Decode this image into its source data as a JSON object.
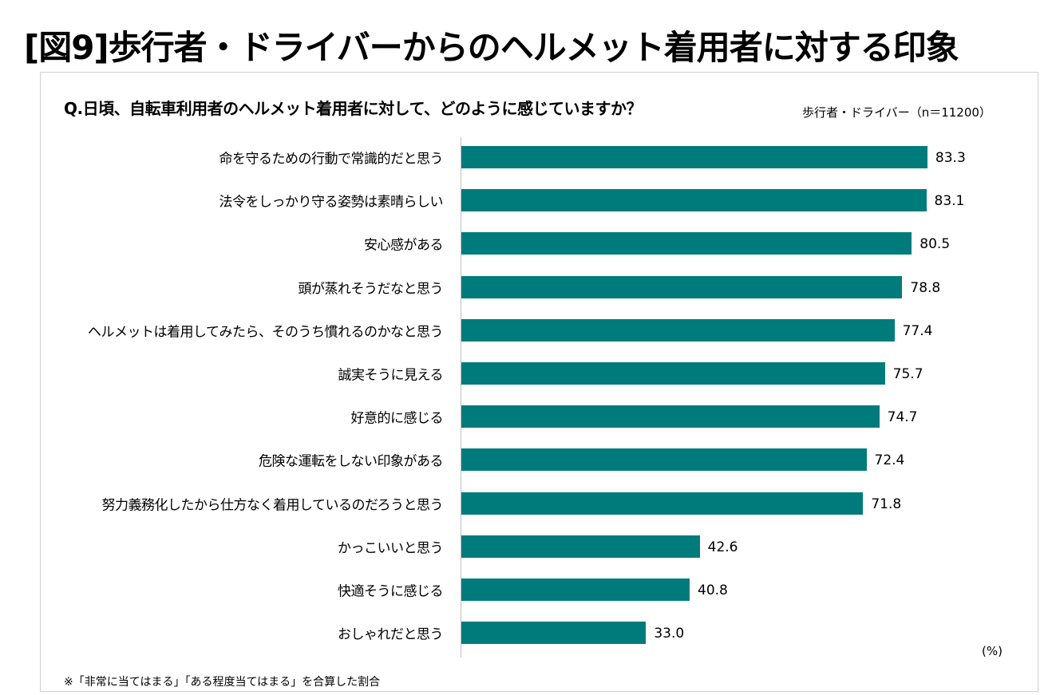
{
  "title": "[図9]歩行者・ドライバーからのヘルメット着用者に対する印象",
  "chart_data": {
    "type": "bar",
    "orientation": "horizontal",
    "title": "Q.日頃、自転車利用者のヘルメット着用者に対して、どのように感じていますか？",
    "sample_label": "歩行者・ドライバー（n＝11200）",
    "unit_label": "(%)",
    "xlim": [
      0,
      100
    ],
    "grid": false,
    "bar_color": "#007b7b",
    "categories": [
      "命を守るための行動で常識的だと思う",
      "法令をしっかり守る姿勢は素晴らしい",
      "安心感がある",
      "頭が蒸れそうだなと思う",
      "ヘルメットは着用してみたら、そのうち慣れるのかなと思う",
      "誠実そうに見える",
      "好意的に感じる",
      "危険な運転をしない印象がある",
      "努力義務化したから仕方なく着用しているのだろうと思う",
      "かっこいいと思う",
      "快適そうに感じる",
      "おしゃれだと思う"
    ],
    "values": [
      83.3,
      83.1,
      80.5,
      78.8,
      77.4,
      75.7,
      74.7,
      72.4,
      71.8,
      42.6,
      40.8,
      33.0
    ],
    "value_labels": [
      "83.3",
      "83.1",
      "80.5",
      "78.8",
      "77.4",
      "75.7",
      "74.7",
      "72.4",
      "71.8",
      "42.6",
      "40.8",
      "33.0"
    ]
  },
  "footnote": "※「非常に当てはまる」「ある程度当てはまる」を合算した割合"
}
